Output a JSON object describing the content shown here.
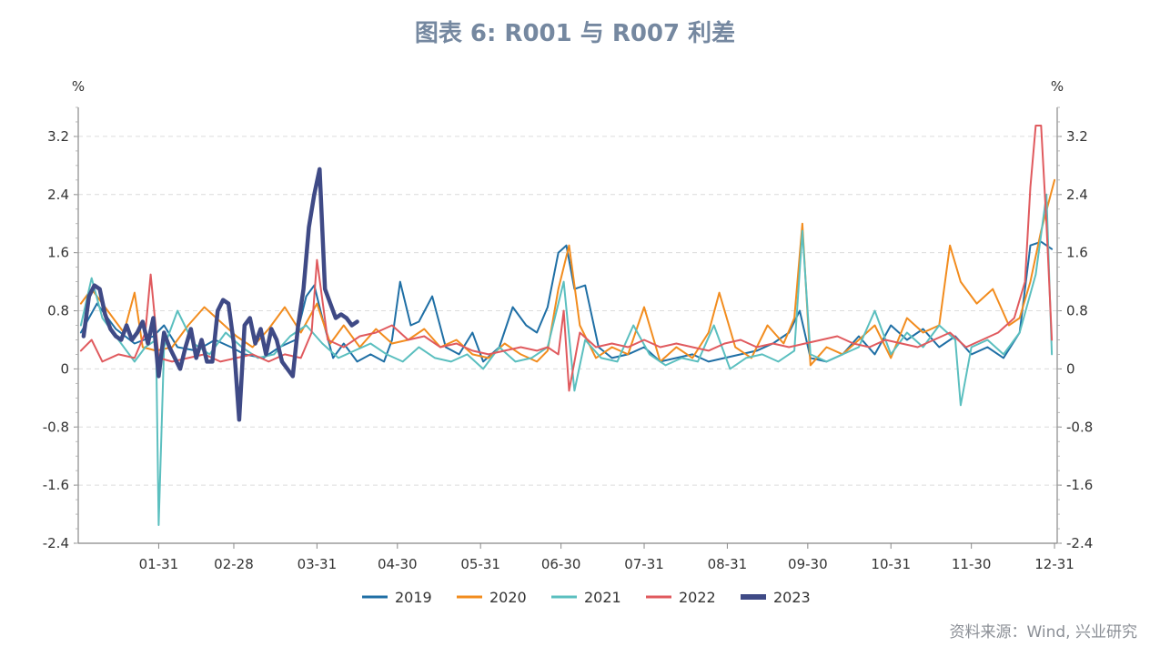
{
  "title": "图表 6:  R001 与 R007 利差",
  "source": "资料来源：Wind, 兴业研究",
  "chart_data": {
    "type": "line",
    "title": "图表 6:  R001 与 R007 利差",
    "y_unit_left": "%",
    "y_unit_right": "%",
    "xlabel": "",
    "ylabel": "",
    "ylim": [
      -2.4,
      3.6
    ],
    "yticks": [
      3.2,
      2.4,
      1.6,
      0.8,
      0,
      -0.8,
      -1.6,
      -2.4
    ],
    "ytick_labels": [
      "3.2",
      "2.4",
      "1.6",
      "0.8",
      "0",
      "-0.8",
      "-1.6",
      "-2.4"
    ],
    "xlim": [
      1,
      366
    ],
    "xticks": [
      31,
      59,
      90,
      120,
      151,
      181,
      212,
      243,
      273,
      304,
      334,
      365
    ],
    "xtick_labels": [
      "01-31",
      "02-28",
      "03-31",
      "04-30",
      "05-31",
      "06-30",
      "07-31",
      "08-31",
      "09-30",
      "10-31",
      "11-30",
      "12-31"
    ],
    "grid": "horizontal-dashed",
    "legend_position": "bottom",
    "series": [
      {
        "name": "2019",
        "color": "#1f6fa5",
        "x": [
          2,
          8,
          15,
          22,
          29,
          33,
          38,
          45,
          52,
          58,
          63,
          70,
          76,
          82,
          86,
          89,
          92,
          96,
          100,
          105,
          110,
          115,
          118,
          121,
          125,
          128,
          133,
          138,
          143,
          148,
          152,
          158,
          163,
          168,
          172,
          176,
          180,
          183,
          186,
          190,
          195,
          200,
          206,
          212,
          218,
          224,
          230,
          236,
          242,
          248,
          254,
          260,
          266,
          270,
          274,
          280,
          286,
          292,
          298,
          304,
          310,
          316,
          322,
          328,
          334,
          340,
          346,
          352,
          356,
          360,
          364
        ],
        "y": [
          0.5,
          0.9,
          0.55,
          0.35,
          0.45,
          0.6,
          0.3,
          0.25,
          0.4,
          0.3,
          0.2,
          0.15,
          0.3,
          0.4,
          1.0,
          1.15,
          0.7,
          0.15,
          0.35,
          0.1,
          0.2,
          0.1,
          0.4,
          1.2,
          0.6,
          0.65,
          1.0,
          0.3,
          0.2,
          0.5,
          0.1,
          0.3,
          0.85,
          0.6,
          0.5,
          0.85,
          1.6,
          1.7,
          1.1,
          1.15,
          0.3,
          0.15,
          0.2,
          0.3,
          0.1,
          0.15,
          0.2,
          0.1,
          0.15,
          0.2,
          0.25,
          0.35,
          0.5,
          0.8,
          0.15,
          0.1,
          0.2,
          0.45,
          0.2,
          0.6,
          0.4,
          0.55,
          0.3,
          0.45,
          0.2,
          0.3,
          0.15,
          0.5,
          1.7,
          1.75,
          1.65
        ]
      },
      {
        "name": "2020",
        "color": "#f28c1e",
        "x": [
          2,
          6,
          12,
          18,
          22,
          25,
          30,
          36,
          42,
          48,
          54,
          60,
          66,
          72,
          78,
          84,
          90,
          95,
          100,
          106,
          112,
          118,
          124,
          130,
          136,
          142,
          148,
          154,
          160,
          166,
          172,
          176,
          180,
          184,
          188,
          194,
          200,
          206,
          212,
          218,
          224,
          230,
          236,
          240,
          246,
          252,
          258,
          264,
          268,
          271,
          274,
          280,
          286,
          292,
          298,
          304,
          310,
          316,
          322,
          326,
          330,
          336,
          342,
          348,
          352,
          356,
          360,
          365
        ],
        "y": [
          0.9,
          1.1,
          0.8,
          0.5,
          1.05,
          0.3,
          0.25,
          0.3,
          0.6,
          0.85,
          0.65,
          0.45,
          0.3,
          0.55,
          0.85,
          0.5,
          0.9,
          0.35,
          0.6,
          0.3,
          0.55,
          0.35,
          0.4,
          0.55,
          0.3,
          0.4,
          0.2,
          0.15,
          0.35,
          0.2,
          0.1,
          0.25,
          1.1,
          1.7,
          0.6,
          0.15,
          0.3,
          0.2,
          0.85,
          0.1,
          0.3,
          0.15,
          0.5,
          1.05,
          0.3,
          0.15,
          0.6,
          0.35,
          0.7,
          2.0,
          0.05,
          0.3,
          0.2,
          0.4,
          0.6,
          0.15,
          0.7,
          0.5,
          0.6,
          1.7,
          1.2,
          0.9,
          1.1,
          0.6,
          0.7,
          1.2,
          1.9,
          2.6
        ]
      },
      {
        "name": "2021",
        "color": "#5bbfbf",
        "x": [
          2,
          6,
          10,
          16,
          22,
          26,
          30,
          31,
          33,
          38,
          44,
          50,
          56,
          62,
          68,
          74,
          80,
          86,
          92,
          98,
          104,
          110,
          116,
          122,
          128,
          134,
          140,
          146,
          152,
          158,
          164,
          170,
          176,
          182,
          186,
          190,
          196,
          202,
          208,
          214,
          220,
          226,
          232,
          238,
          244,
          250,
          256,
          262,
          268,
          271,
          274,
          280,
          286,
          292,
          298,
          304,
          310,
          316,
          322,
          328,
          330,
          334,
          340,
          346,
          352,
          358,
          362,
          364
        ],
        "y": [
          0.6,
          1.25,
          0.7,
          0.4,
          0.1,
          0.3,
          0.4,
          -2.15,
          0.3,
          0.8,
          0.35,
          0.2,
          0.5,
          0.3,
          0.15,
          0.2,
          0.45,
          0.6,
          0.35,
          0.15,
          0.25,
          0.35,
          0.2,
          0.1,
          0.3,
          0.15,
          0.1,
          0.2,
          0.0,
          0.3,
          0.1,
          0.15,
          0.3,
          1.2,
          -0.3,
          0.4,
          0.15,
          0.1,
          0.6,
          0.2,
          0.05,
          0.15,
          0.1,
          0.6,
          0.0,
          0.15,
          0.2,
          0.1,
          0.25,
          1.9,
          0.2,
          0.1,
          0.2,
          0.3,
          0.8,
          0.2,
          0.5,
          0.3,
          0.6,
          0.4,
          -0.5,
          0.3,
          0.4,
          0.2,
          0.5,
          1.3,
          2.4,
          0.2
        ]
      },
      {
        "name": "2022",
        "color": "#e05a5e",
        "x": [
          2,
          6,
          10,
          16,
          22,
          26,
          28,
          31,
          36,
          42,
          48,
          54,
          60,
          66,
          72,
          78,
          84,
          88,
          90,
          94,
          100,
          106,
          112,
          118,
          124,
          130,
          136,
          142,
          148,
          154,
          160,
          166,
          172,
          176,
          180,
          182,
          184,
          188,
          194,
          200,
          206,
          212,
          218,
          224,
          230,
          236,
          242,
          248,
          254,
          260,
          266,
          272,
          278,
          284,
          290,
          296,
          302,
          308,
          314,
          320,
          326,
          332,
          338,
          344,
          350,
          354,
          356,
          358,
          360,
          362,
          364
        ],
        "y": [
          0.25,
          0.4,
          0.1,
          0.2,
          0.15,
          0.5,
          1.3,
          0.15,
          0.1,
          0.15,
          0.2,
          0.1,
          0.15,
          0.2,
          0.1,
          0.2,
          0.15,
          0.5,
          1.5,
          0.4,
          0.3,
          0.45,
          0.5,
          0.6,
          0.4,
          0.45,
          0.3,
          0.35,
          0.25,
          0.2,
          0.25,
          0.3,
          0.25,
          0.3,
          0.2,
          0.8,
          -0.3,
          0.5,
          0.3,
          0.35,
          0.3,
          0.4,
          0.3,
          0.35,
          0.3,
          0.25,
          0.35,
          0.4,
          0.3,
          0.35,
          0.3,
          0.35,
          0.4,
          0.45,
          0.35,
          0.3,
          0.4,
          0.35,
          0.3,
          0.4,
          0.5,
          0.3,
          0.4,
          0.5,
          0.7,
          1.2,
          2.5,
          3.35,
          3.35,
          2.0,
          0.4
        ]
      },
      {
        "name": "2023",
        "color": "#3f4a86",
        "x": [
          3,
          5,
          7,
          9,
          11,
          13,
          15,
          17,
          19,
          21,
          23,
          25,
          27,
          29,
          31,
          33,
          35,
          37,
          39,
          41,
          43,
          45,
          47,
          49,
          51,
          53,
          55,
          57,
          59,
          61,
          63,
          65,
          67,
          69,
          71,
          73,
          75,
          77,
          79,
          81,
          83,
          85,
          87,
          89,
          91,
          93,
          95,
          97,
          99,
          101,
          103,
          105
        ],
        "y": [
          0.45,
          1.0,
          1.15,
          1.1,
          0.75,
          0.55,
          0.45,
          0.4,
          0.6,
          0.4,
          0.5,
          0.65,
          0.35,
          0.7,
          -0.1,
          0.5,
          0.3,
          0.15,
          0.0,
          0.3,
          0.55,
          0.15,
          0.4,
          0.1,
          0.1,
          0.8,
          0.95,
          0.9,
          0.35,
          -0.7,
          0.6,
          0.7,
          0.35,
          0.55,
          0.2,
          0.55,
          0.4,
          0.1,
          0.0,
          -0.1,
          0.6,
          1.1,
          1.95,
          2.4,
          2.75,
          1.1,
          0.9,
          0.7,
          0.75,
          0.7,
          0.6,
          0.65
        ]
      }
    ]
  }
}
